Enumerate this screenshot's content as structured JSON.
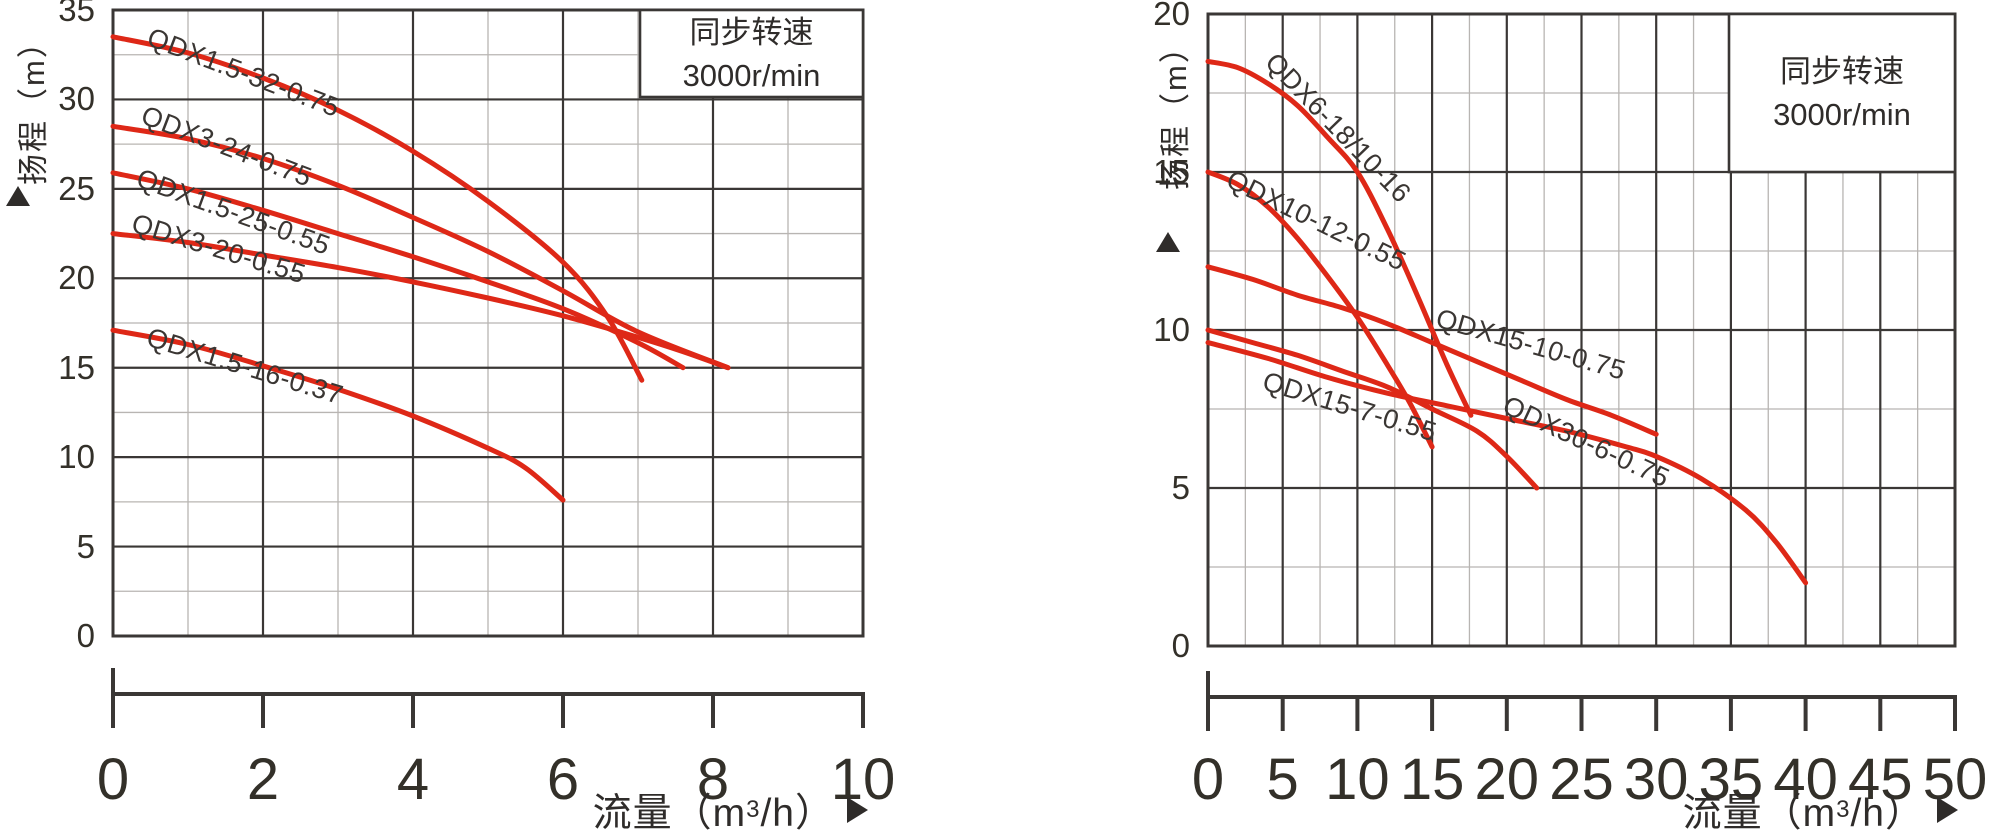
{
  "colors": {
    "curve": "#de2817",
    "grid_major": "#3a3735",
    "grid_minor": "#b8b5b2",
    "text": "#333029",
    "background": "#ffffff"
  },
  "chart_data": [
    {
      "type": "line",
      "title": "",
      "legend": {
        "line1": "同步转速",
        "line2": "3000r/min",
        "position": "top-right"
      },
      "x_axis": {
        "label": "流量（m³/h）",
        "label_base": "流量（m",
        "label_sup": "3",
        "label_tail": "/h）",
        "min": 0,
        "max": 10,
        "major_step": 2,
        "minor_step": 1,
        "ticks": [
          "0",
          "2",
          "4",
          "6",
          "8",
          "10"
        ]
      },
      "y_axis": {
        "label": "扬程（m）",
        "min": 0,
        "max": 35,
        "major_step": 5,
        "minor_step": 2.5,
        "ticks": [
          "0",
          "5",
          "10",
          "15",
          "20",
          "25",
          "30",
          "35"
        ]
      },
      "grid": "on",
      "series": [
        {
          "name": "QDX1.5-32-0.75",
          "points": [
            [
              0,
              33.5
            ],
            [
              1,
              32.6
            ],
            [
              2,
              31.2
            ],
            [
              3,
              29.4
            ],
            [
              4,
              27.1
            ],
            [
              5,
              24.3
            ],
            [
              6,
              20.9
            ],
            [
              6.6,
              17.8
            ],
            [
              7.05,
              14.3
            ]
          ],
          "label": {
            "x": 0.55,
            "y": 34.35,
            "angle": 21
          }
        },
        {
          "name": "QDX3-24-0.75",
          "points": [
            [
              0,
              28.5
            ],
            [
              1,
              27.8
            ],
            [
              2,
              26.7
            ],
            [
              3,
              25.2
            ],
            [
              4,
              23.4
            ],
            [
              5,
              21.5
            ],
            [
              6,
              19.3
            ],
            [
              7,
              17.0
            ],
            [
              8.2,
              15.0
            ]
          ],
          "label": {
            "x": 0.47,
            "y": 29.95,
            "angle": 21
          }
        },
        {
          "name": "QDX1.5-25-0.55",
          "points": [
            [
              0,
              25.9
            ],
            [
              1,
              25.0
            ],
            [
              2,
              23.8
            ],
            [
              3,
              22.5
            ],
            [
              4,
              21.2
            ],
            [
              5,
              19.8
            ],
            [
              6,
              18.3
            ],
            [
              7,
              16.4
            ],
            [
              7.6,
              15.0
            ]
          ],
          "label": {
            "x": 0.4,
            "y": 26.45,
            "angle": 20
          }
        },
        {
          "name": "QDX3-20-0.55",
          "points": [
            [
              0,
              22.5
            ],
            [
              1,
              22.0
            ],
            [
              2,
              21.3
            ],
            [
              3,
              20.6
            ],
            [
              4,
              19.8
            ],
            [
              5,
              18.9
            ],
            [
              6,
              17.9
            ],
            [
              7,
              16.7
            ],
            [
              7.6,
              15.9
            ],
            [
              8.2,
              15.0
            ]
          ],
          "label": {
            "x": 0.32,
            "y": 23.95,
            "angle": 17
          }
        },
        {
          "name": "QDX1.5-16-0.37",
          "points": [
            [
              0,
              17.1
            ],
            [
              1,
              16.3
            ],
            [
              2,
              15.1
            ],
            [
              3,
              13.8
            ],
            [
              4,
              12.3
            ],
            [
              5,
              10.5
            ],
            [
              5.5,
              9.4
            ],
            [
              6,
              7.6
            ]
          ],
          "label": {
            "x": 0.52,
            "y": 17.55,
            "angle": 17
          }
        }
      ]
    },
    {
      "type": "line",
      "title": "",
      "legend": {
        "line1": "同步转速",
        "line2": "3000r/min",
        "position": "top-right"
      },
      "x_axis": {
        "label": "流量（m³/h）",
        "label_base": "流量（m",
        "label_sup": "3",
        "label_tail": "/h）",
        "min": 0,
        "max": 50,
        "major_step": 5,
        "minor_step": 2.5,
        "ticks": [
          "0",
          "5",
          "10",
          "15",
          "20",
          "25",
          "30",
          "35",
          "40",
          "45",
          "50"
        ]
      },
      "y_axis": {
        "label": "扬程（m）",
        "min": 0,
        "max": 20,
        "major_step": 5,
        "minor_step": 2.5,
        "ticks": [
          "0",
          "5",
          "10",
          "15",
          "20"
        ]
      },
      "grid": "on",
      "series": [
        {
          "name": "QDX6-18/10-16",
          "points": [
            [
              0,
              18.5
            ],
            [
              2,
              18.3
            ],
            [
              4,
              17.8
            ],
            [
              6,
              17.1
            ],
            [
              8,
              16.1
            ],
            [
              10,
              15.0
            ],
            [
              12,
              13.2
            ],
            [
              14,
              11.1
            ],
            [
              16,
              8.9
            ],
            [
              17.6,
              7.3
            ]
          ],
          "label": {
            "x": 4.9,
            "y": 18.95,
            "angle": 46
          }
        },
        {
          "name": "QDX10-12-0.55",
          "points": [
            [
              0,
              15.0
            ],
            [
              2,
              14.6
            ],
            [
              4,
              13.9
            ],
            [
              6,
              12.9
            ],
            [
              8,
              11.7
            ],
            [
              10,
              10.4
            ],
            [
              12,
              8.9
            ],
            [
              13.5,
              7.7
            ],
            [
              15,
              6.3
            ]
          ],
          "label": {
            "x": 1.8,
            "y": 15.25,
            "angle": 26
          }
        },
        {
          "name": "QDX15-10-0.75",
          "points": [
            [
              0,
              12.0
            ],
            [
              3,
              11.6
            ],
            [
              6,
              11.1
            ],
            [
              9,
              10.7
            ],
            [
              12,
              10.2
            ],
            [
              15,
              9.6
            ],
            [
              18,
              9.0
            ],
            [
              21,
              8.4
            ],
            [
              24,
              7.8
            ],
            [
              27,
              7.3
            ],
            [
              30,
              6.7
            ]
          ],
          "label": {
            "x": 15.6,
            "y": 10.85,
            "angle": 16
          }
        },
        {
          "name": "QDX15-7-0.55",
          "points": [
            [
              0,
              10.0
            ],
            [
              3,
              9.6
            ],
            [
              6,
              9.2
            ],
            [
              9,
              8.7
            ],
            [
              12,
              8.2
            ],
            [
              15,
              7.5
            ],
            [
              18,
              6.8
            ],
            [
              20,
              6.0
            ],
            [
              22,
              5.0
            ]
          ],
          "label": {
            "x": 4.0,
            "y": 8.85,
            "angle": 17
          }
        },
        {
          "name": "QDX30-6-0.75",
          "points": [
            [
              0,
              9.6
            ],
            [
              4,
              9.1
            ],
            [
              8,
              8.5
            ],
            [
              12,
              8.0
            ],
            [
              16,
              7.6
            ],
            [
              20,
              7.2
            ],
            [
              24,
              6.8
            ],
            [
              28,
              6.3
            ],
            [
              30,
              6.0
            ],
            [
              33,
              5.3
            ],
            [
              36,
              4.3
            ],
            [
              38,
              3.3
            ],
            [
              40,
              2.0
            ]
          ],
          "label": {
            "x": 20.3,
            "y": 8.1,
            "angle": 25
          }
        }
      ]
    }
  ]
}
